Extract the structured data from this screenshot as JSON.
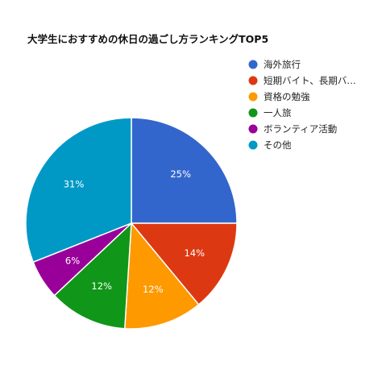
{
  "chart_data": {
    "type": "pie",
    "title": "大学生におすすめの休日の過ごし方ランキングTOP5",
    "legend_position": "right",
    "slices": [
      {
        "label": "海外旅行",
        "legend_label": "海外旅行",
        "value": 25,
        "value_label": "25%",
        "color": "#3366cc"
      },
      {
        "label": "短期バイト、長期バイト",
        "legend_label": "短期バイト、長期バ…",
        "value": 14,
        "value_label": "14%",
        "color": "#dc3912"
      },
      {
        "label": "資格の勉強",
        "legend_label": "資格の勉強",
        "value": 12,
        "value_label": "12%",
        "color": "#ff9900"
      },
      {
        "label": "一人旅",
        "legend_label": "一人旅",
        "value": 12,
        "value_label": "12%",
        "color": "#109618"
      },
      {
        "label": "ボランティア活動",
        "legend_label": "ボランティア活動",
        "value": 6,
        "value_label": "6%",
        "color": "#990099"
      },
      {
        "label": "その他",
        "legend_label": "その他",
        "value": 31,
        "value_label": "31%",
        "color": "#0099c6"
      }
    ]
  }
}
